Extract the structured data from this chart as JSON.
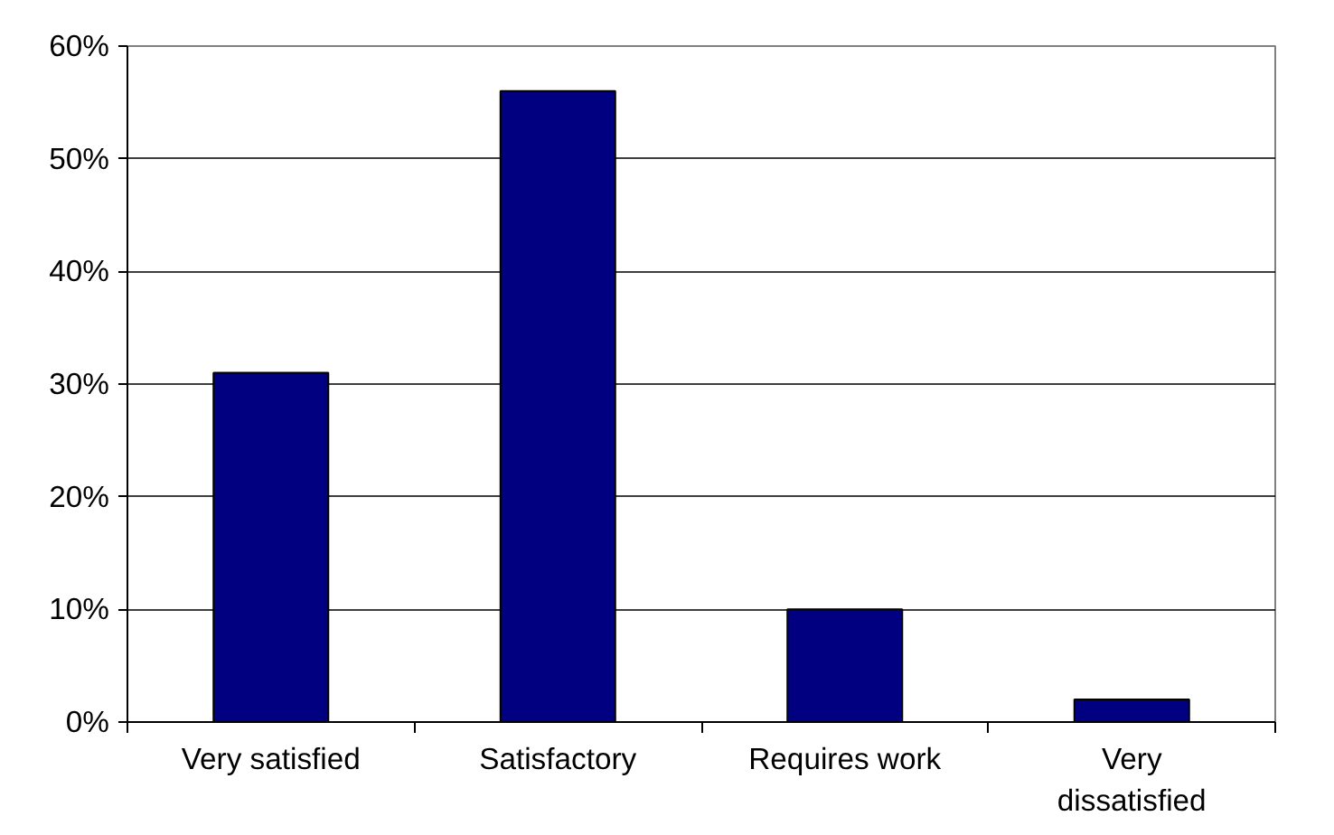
{
  "chart_data": {
    "type": "bar",
    "categories": [
      "Very satisfied",
      "Satisfactory",
      "Requires work",
      "Very dissatisfied"
    ],
    "values": [
      31,
      56,
      10,
      2
    ],
    "color": "#000080",
    "ylim": [
      0,
      60
    ],
    "yticks": [
      {
        "value": 0,
        "label": "0%"
      },
      {
        "value": 10,
        "label": "10%"
      },
      {
        "value": 20,
        "label": "20%"
      },
      {
        "value": 30,
        "label": "30%"
      },
      {
        "value": 40,
        "label": "40%"
      },
      {
        "value": 50,
        "label": "50%"
      },
      {
        "value": 60,
        "label": "60%"
      }
    ],
    "grid": "y"
  }
}
